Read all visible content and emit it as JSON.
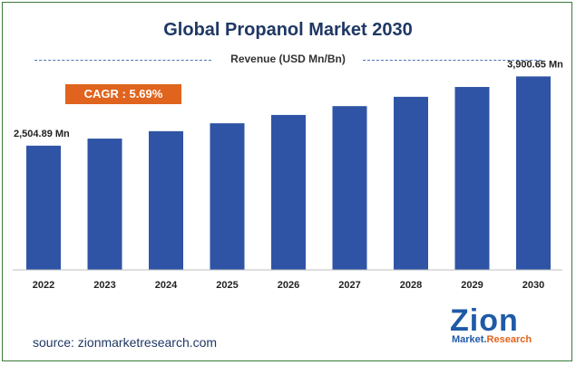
{
  "chart_data": {
    "type": "bar",
    "title": "Global Propanol Market 2030",
    "subtitle": "Revenue (USD Mn/Bn)",
    "categories": [
      "2022",
      "2023",
      "2024",
      "2025",
      "2026",
      "2027",
      "2028",
      "2029",
      "2030"
    ],
    "values": [
      2504.89,
      2647,
      2797,
      2956,
      3124,
      3302,
      3490,
      3688,
      3900.65
    ],
    "data_labels": {
      "first": "2,504.89 Mn",
      "last": "3,900.65 Mn"
    },
    "ylim": [
      0,
      4200
    ],
    "grid": false,
    "bar_color": "#2f54a5"
  },
  "cagr_label": "CAGR : 5.69%",
  "source": "source: zionmarketresearch.com",
  "logo": {
    "main": "Zion",
    "sub_left": "Market.",
    "sub_right": "Research"
  },
  "colors": {
    "title": "#1f3864",
    "cagr_bg": "#e0641e",
    "border": "#3a7c3a"
  }
}
